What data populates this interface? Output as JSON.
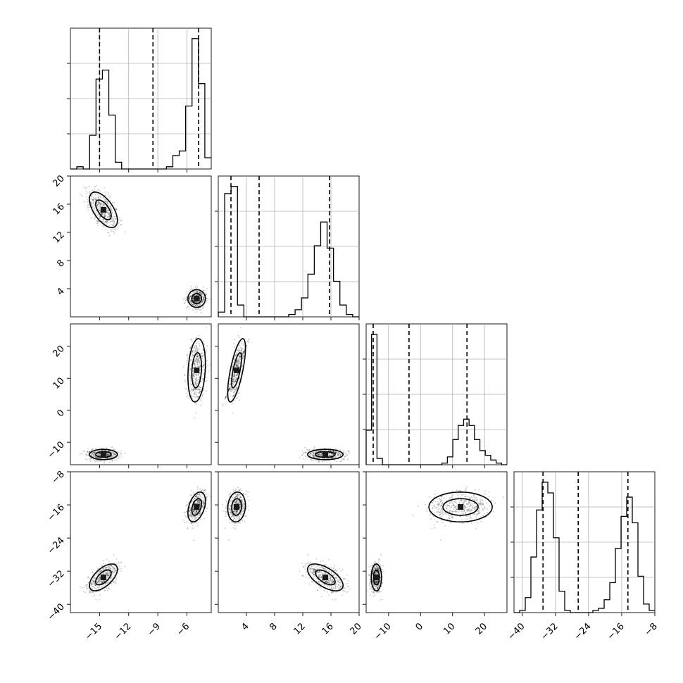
{
  "chart_data": {
    "type": "scatter",
    "title": "",
    "grid": true,
    "params": [
      {
        "range": [
          -18,
          -3.5
        ],
        "ticks": [
          -15,
          -12,
          -9,
          -6
        ],
        "tick_labels": [
          "−15",
          "−12",
          "−9",
          "−6"
        ]
      },
      {
        "range": [
          0,
          20
        ],
        "ticks": [
          4,
          8,
          12,
          16,
          20
        ],
        "tick_labels": [
          "4",
          "8",
          "12",
          "16",
          "20"
        ]
      },
      {
        "range": [
          -17,
          27
        ],
        "ticks": [
          -10,
          0,
          10,
          20
        ],
        "tick_labels": [
          "−10",
          "0",
          "10",
          "20"
        ]
      },
      {
        "range": [
          -42,
          -8
        ],
        "ticks": [
          -40,
          -32,
          -24,
          -16,
          -8
        ],
        "tick_labels": [
          "−40",
          "−32",
          "−24",
          "−16",
          "−8"
        ]
      }
    ],
    "quantiles": [
      [
        -15.0,
        -9.5,
        -4.8
      ],
      [
        1.8,
        5.8,
        15.8
      ],
      [
        -14.8,
        -3.6,
        14.5
      ],
      [
        -35.0,
        -26.5,
        -14.5
      ]
    ],
    "modes": [
      {
        "weight": 0.5,
        "mean": [
          -14.6,
          15.2,
          -13.8,
          -33.5
        ],
        "sd": [
          0.8,
          1.4,
          0.9,
          1.8
        ],
        "corr": {
          "0-1": -0.6,
          "0-3": 0.6,
          "1-3": -0.6
        }
      },
      {
        "weight": 0.5,
        "mean": [
          -5.0,
          2.6,
          12.5,
          -16.5
        ],
        "sd": [
          0.5,
          0.7,
          5.5,
          2.0
        ],
        "corr": {
          "0-2": 0.2,
          "1-2": 0.7,
          "0-3": 0.4,
          "1-3": 0.1
        }
      }
    ],
    "histograms": [
      {
        "counts": [
          0,
          1,
          0,
          15,
          40,
          44,
          24,
          3,
          0,
          0,
          0,
          0,
          0,
          0,
          0,
          1,
          6,
          8,
          28,
          58,
          38,
          5
        ]
      },
      {
        "counts": [
          2,
          52,
          55,
          5,
          0,
          0,
          0,
          0,
          0,
          0,
          0,
          1,
          3,
          8,
          18,
          30,
          40,
          29,
          15,
          5,
          1,
          0
        ]
      },
      {
        "counts": [
          22,
          83,
          4,
          0,
          0,
          0,
          0,
          0,
          0,
          0,
          0,
          0,
          0,
          0,
          1,
          5,
          16,
          25,
          29,
          25,
          16,
          9,
          6,
          3,
          1,
          0
        ]
      },
      {
        "counts": [
          0,
          1,
          7,
          26,
          48,
          61,
          56,
          35,
          10,
          1,
          0,
          0,
          0,
          0,
          1,
          2,
          6,
          14,
          30,
          45,
          54,
          42,
          17,
          4,
          1
        ]
      }
    ]
  }
}
